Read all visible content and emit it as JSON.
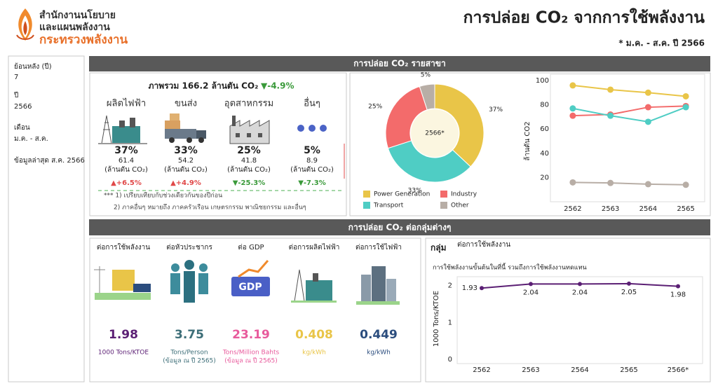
{
  "header": {
    "org": [
      "สำนักงานนโยบาย",
      "และแผนพลังงาน",
      "กระทรวงพลังงาน"
    ],
    "title": "การปล่อย CO₂ จากการใช้พลังงาน",
    "period": "* ม.ค. - ส.ค. ปี 2566"
  },
  "filters": [
    {
      "label": "ย้อนหลัง (ปี)",
      "value": "7"
    },
    {
      "label": "ปี",
      "value": "2566"
    },
    {
      "label": "เดือน",
      "value": "ม.ค. - ส.ค."
    },
    {
      "label": "ข้อมูลล่าสุด ส.ค. 2566"
    }
  ],
  "sector": {
    "title": "การปล่อย CO₂ รายสาขา",
    "total": "ภาพรวม 166.2 ล้านตัน CO₂",
    "total_change": "▼-4.9%",
    "items": [
      {
        "name": "ผลิตไฟฟ้า",
        "share": "37%",
        "value": "61.4",
        "unit": "(ล้านตัน CO₂)",
        "change": "▲+6.5%",
        "change_color": "#e04848"
      },
      {
        "name": "ขนส่ง",
        "share": "33%",
        "value": "54.2",
        "unit": "(ล้านตัน CO₂)",
        "change": "▲+4.9%",
        "change_color": "#e04848"
      },
      {
        "name": "อุตสาหกรรม",
        "share": "25%",
        "value": "41.8",
        "unit": "(ล้านตัน CO₂)",
        "change": "▼-25.3%",
        "change_color": "#3a9a3a"
      },
      {
        "name": "อื่นๆ",
        "share": "5%",
        "value": "8.9",
        "unit": "(ล้านตัน CO₂)",
        "change": "▼-7.3%",
        "change_color": "#3a9a3a"
      }
    ],
    "notes": [
      "*** 1) เปรียบเทียบกับช่วงเดียวกันของปีก่อน",
      "2) ภาคอื่นๆ หมายถึง ภาคครัวเรือน เกษตรกรรม พาณิชยกรรม และอื่นๆ"
    ]
  },
  "chart_data": [
    {
      "type": "donut",
      "categories": [
        "Power Generation",
        "Transport",
        "Industry",
        "Other"
      ],
      "values": [
        37,
        33,
        25,
        5
      ],
      "value_labels": [
        "37%",
        "33%",
        "25%",
        "5%"
      ],
      "colors": [
        "#e9c548",
        "#4fcdc4",
        "#f36b6b",
        "#b8aea6"
      ],
      "center_label": "2566*"
    },
    {
      "type": "line",
      "y_label": "ล้านตัน CO2",
      "categories": [
        "2562",
        "2563",
        "2564",
        "2565"
      ],
      "series": [
        {
          "color": "#e9c548",
          "values": [
            96,
            92.5,
            90,
            87
          ]
        },
        {
          "color": "#f36b6b",
          "values": [
            71,
            72,
            78,
            79
          ]
        },
        {
          "color": "#4fcdc4",
          "values": [
            77,
            71,
            66,
            78
          ]
        },
        {
          "color": "#b8aea6",
          "values": [
            16,
            15.5,
            14.5,
            14
          ]
        }
      ],
      "ylim": [
        0,
        100
      ],
      "yticks": [
        20,
        40,
        60,
        80,
        100
      ]
    },
    {
      "type": "line",
      "title": "การใช้พลังงานขั้นต้นในที่นี้ รวมถึงการใช้พลังงานทดแทน",
      "y_label": "1000 Tons/KTOE",
      "categories": [
        "2562",
        "2563",
        "2564",
        "2565",
        "2566*"
      ],
      "series": [
        {
          "color": "#5b1f74",
          "values": [
            1.93,
            2.04,
            2.04,
            2.05,
            1.98
          ]
        }
      ],
      "ylim": [
        0,
        2.2
      ],
      "yticks": [
        0,
        1,
        2
      ],
      "data_labels": true
    }
  ],
  "groups": {
    "title": "การปล่อย CO₂ ต่อกลุ่มต่างๆ",
    "selector_label": "กลุ่ม",
    "selector_value": "ต่อการใช้พลังงาน",
    "items": [
      {
        "label": "ต่อการใช้พลังงาน",
        "value": "1.98",
        "unit": [
          "1000 Tons/KTOE"
        ],
        "color": "#5b1f74"
      },
      {
        "label": "ต่อหัวประชากร",
        "value": "3.75",
        "unit": [
          "Tons/Person",
          "(ข้อมูล ณ ปี 2565)"
        ],
        "color": "#3d6e78"
      },
      {
        "label": "ต่อ GDP",
        "value": "23.19",
        "unit": [
          "Tons/Million Bahts",
          "(ข้อมูล ณ ปี 2565)"
        ],
        "color": "#e85a9c"
      },
      {
        "label": "ต่อการผลิตไฟฟ้า",
        "value": "0.408",
        "unit": [
          "kg/kWh"
        ],
        "color": "#e9c548"
      },
      {
        "label": "ต่อการใช้ไฟฟ้า",
        "value": "0.449",
        "unit": [
          "kg/kWh"
        ],
        "color": "#2b4d7e"
      }
    ]
  }
}
